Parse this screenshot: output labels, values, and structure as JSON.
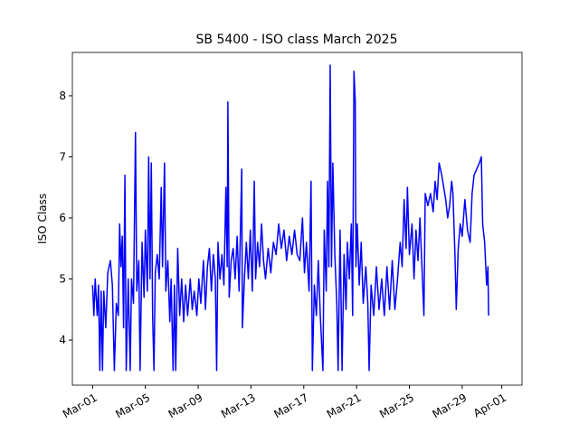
{
  "chart_data": {
    "type": "line",
    "title": "SB 5400 - ISO class March 2025",
    "y_label": "ISO Class",
    "xlim": [
      -0.53,
      33.53
    ],
    "ylim": [
      3.26,
      8.71
    ],
    "xticks": [
      {
        "value": 1,
        "label": "Mar-01"
      },
      {
        "value": 5,
        "label": "Mar-05"
      },
      {
        "value": 9,
        "label": "Mar-09"
      },
      {
        "value": 13,
        "label": "Mar-13"
      },
      {
        "value": 17,
        "label": "Mar-17"
      },
      {
        "value": 21,
        "label": "Mar-21"
      },
      {
        "value": 25,
        "label": "Mar-25"
      },
      {
        "value": 29,
        "label": "Mar-29"
      },
      {
        "value": 32,
        "label": "Apr-01"
      }
    ],
    "yticks": [
      4,
      5,
      6,
      7,
      8
    ],
    "grid": false,
    "series": [
      {
        "color": "#0000ff",
        "x": [
          1.0,
          1.1,
          1.2,
          1.35,
          1.45,
          1.55,
          1.65,
          1.75,
          1.85,
          2.0,
          2.15,
          2.35,
          2.5,
          2.65,
          2.8,
          2.95,
          3.05,
          3.15,
          3.25,
          3.35,
          3.45,
          3.55,
          3.7,
          3.85,
          3.95,
          4.1,
          4.25,
          4.35,
          4.5,
          4.6,
          4.75,
          4.9,
          5.0,
          5.15,
          5.25,
          5.35,
          5.45,
          5.55,
          5.65,
          5.75,
          5.9,
          6.05,
          6.2,
          6.3,
          6.45,
          6.55,
          6.7,
          6.85,
          6.95,
          7.1,
          7.2,
          7.3,
          7.45,
          7.6,
          7.75,
          7.9,
          8.05,
          8.2,
          8.4,
          8.55,
          8.7,
          8.9,
          9.05,
          9.2,
          9.4,
          9.55,
          9.7,
          9.85,
          10.0,
          10.15,
          10.3,
          10.4,
          10.5,
          10.65,
          10.8,
          10.95,
          11.1,
          11.2,
          11.25,
          11.35,
          11.5,
          11.65,
          11.8,
          11.95,
          12.1,
          12.3,
          12.35,
          12.5,
          12.65,
          12.8,
          12.95,
          13.1,
          13.25,
          13.35,
          13.5,
          13.65,
          13.8,
          13.95,
          14.1,
          14.3,
          14.5,
          14.7,
          14.9,
          15.1,
          15.3,
          15.5,
          15.7,
          15.9,
          16.1,
          16.3,
          16.5,
          16.7,
          16.9,
          17.05,
          17.2,
          17.4,
          17.55,
          17.65,
          17.8,
          17.95,
          18.1,
          18.25,
          18.45,
          18.55,
          18.7,
          18.8,
          18.9,
          19.0,
          19.1,
          19.2,
          19.35,
          19.5,
          19.6,
          19.75,
          19.9,
          20.05,
          20.2,
          20.3,
          20.45,
          20.6,
          20.7,
          20.8,
          20.9,
          20.95,
          21.05,
          21.2,
          21.35,
          21.5,
          21.7,
          21.85,
          21.95,
          22.1,
          22.3,
          22.5,
          22.7,
          22.9,
          23.1,
          23.3,
          23.5,
          23.7,
          23.9,
          24.1,
          24.3,
          24.45,
          24.6,
          24.75,
          24.85,
          25.0,
          25.2,
          25.35,
          25.5,
          25.65,
          25.8,
          25.95,
          26.1,
          26.2,
          26.4,
          26.6,
          26.8,
          26.95,
          27.1,
          27.25,
          27.45,
          27.6,
          27.75,
          27.9,
          28.05,
          28.2,
          28.3,
          28.45,
          28.55,
          28.7,
          28.85,
          29.0,
          29.2,
          29.4,
          29.6,
          29.75,
          29.9,
          30.1,
          30.3,
          30.45,
          30.55,
          30.7,
          30.85,
          30.95,
          31.0
        ],
        "values": [
          4.9,
          4.4,
          5.0,
          4.4,
          4.9,
          3.5,
          4.8,
          3.5,
          4.8,
          4.2,
          5.1,
          5.3,
          4.9,
          3.5,
          4.6,
          4.4,
          5.9,
          5.2,
          5.7,
          4.2,
          6.7,
          3.5,
          5.0,
          3.5,
          5.0,
          4.6,
          7.4,
          4.8,
          5.3,
          3.5,
          5.6,
          4.7,
          5.8,
          4.8,
          7.0,
          5.0,
          6.9,
          4.4,
          3.5,
          5.1,
          5.4,
          5.0,
          6.5,
          5.2,
          6.9,
          4.8,
          5.3,
          4.3,
          5.0,
          3.5,
          4.9,
          3.5,
          5.5,
          4.4,
          5.0,
          4.3,
          4.9,
          4.4,
          5.0,
          4.5,
          4.8,
          4.4,
          5.0,
          4.6,
          5.3,
          4.5,
          5.2,
          5.5,
          4.8,
          5.4,
          5.0,
          3.5,
          5.6,
          5.0,
          5.4,
          4.9,
          6.5,
          5.2,
          7.9,
          4.7,
          5.3,
          5.5,
          5.0,
          5.7,
          4.8,
          6.8,
          4.2,
          5.0,
          5.6,
          5.0,
          5.8,
          4.8,
          6.6,
          5.0,
          5.6,
          5.2,
          5.9,
          5.3,
          5.0,
          5.5,
          5.1,
          5.6,
          5.4,
          5.9,
          5.5,
          5.8,
          5.3,
          5.7,
          5.4,
          5.8,
          5.4,
          5.3,
          6.0,
          5.1,
          5.6,
          4.8,
          6.6,
          3.5,
          4.9,
          4.4,
          5.3,
          4.4,
          3.5,
          5.8,
          4.8,
          6.6,
          5.2,
          8.5,
          5.2,
          6.9,
          5.4,
          4.6,
          3.5,
          5.8,
          3.5,
          5.4,
          4.5,
          5.6,
          5.0,
          5.9,
          4.4,
          8.4,
          7.9,
          5.2,
          5.9,
          4.9,
          5.6,
          4.6,
          5.2,
          4.6,
          3.5,
          4.9,
          4.4,
          5.2,
          4.5,
          5.0,
          4.4,
          5.2,
          4.5,
          5.3,
          4.5,
          5.0,
          5.6,
          5.2,
          6.3,
          5.5,
          6.5,
          5.4,
          5.9,
          5.0,
          5.8,
          5.3,
          6.0,
          5.2,
          4.4,
          6.4,
          6.2,
          6.4,
          6.1,
          6.6,
          6.3,
          6.9,
          6.7,
          6.5,
          6.3,
          6.0,
          6.2,
          6.6,
          6.4,
          5.4,
          4.5,
          5.5,
          5.9,
          5.7,
          6.3,
          5.8,
          5.6,
          6.4,
          6.7,
          6.8,
          6.9,
          7.0,
          5.9,
          5.6,
          4.9,
          5.2,
          4.4
        ]
      }
    ]
  }
}
